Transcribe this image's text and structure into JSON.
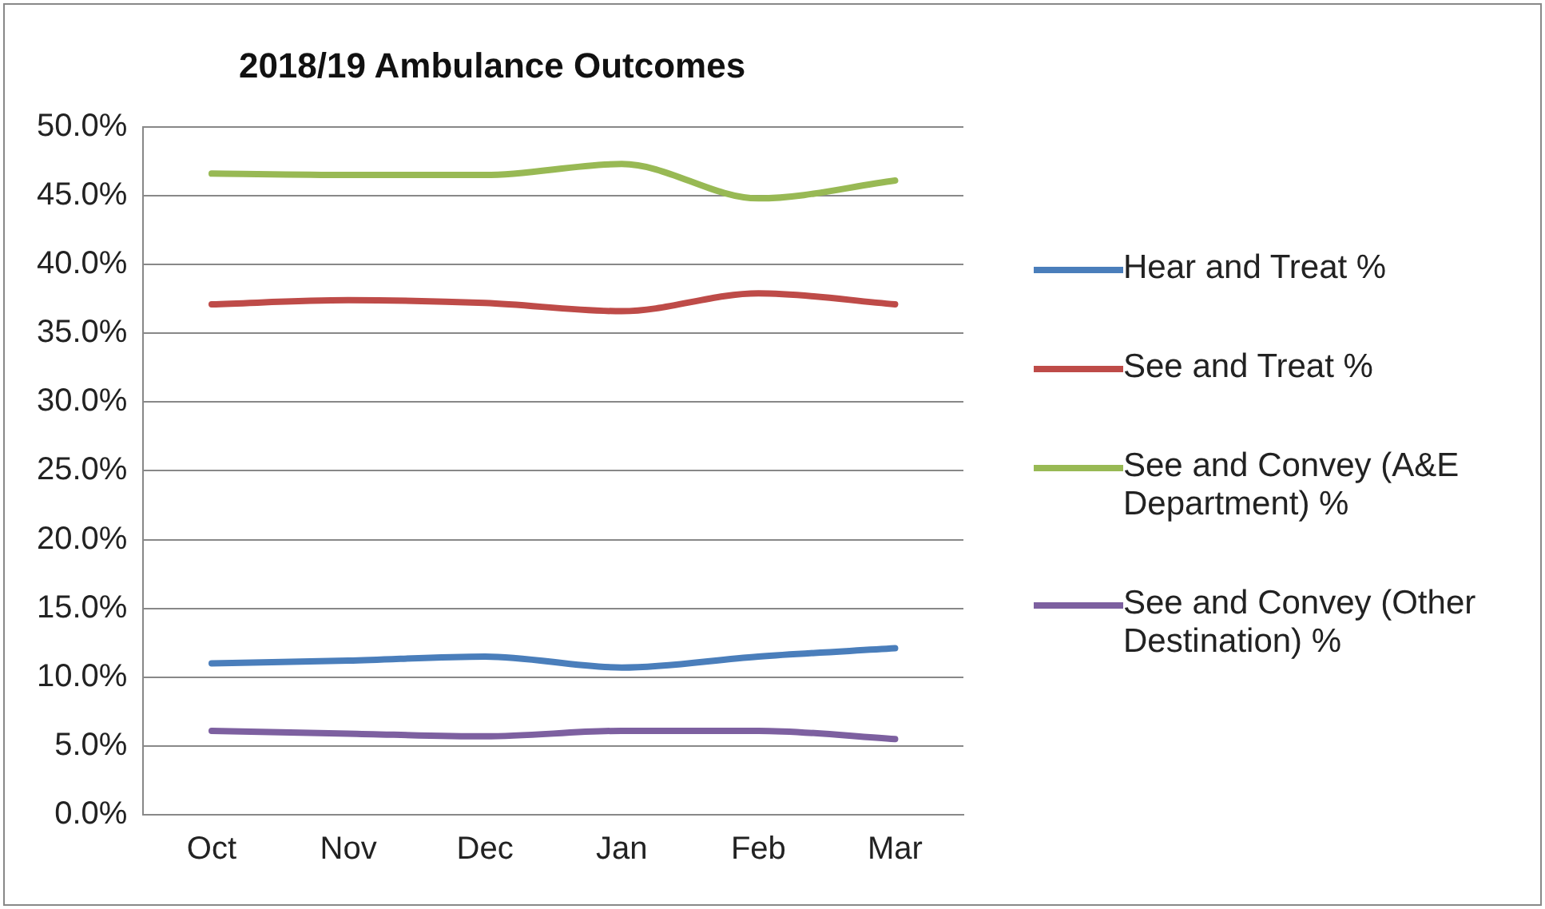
{
  "chart_data": {
    "type": "line",
    "title": "2018/19 Ambulance Outcomes",
    "categories": [
      "Oct",
      "Nov",
      "Dec",
      "Jan",
      "Feb",
      "Mar"
    ],
    "series": [
      {
        "name": "Hear and Treat %",
        "color": "#4a7ebb",
        "values": [
          11.0,
          11.2,
          11.5,
          10.7,
          11.5,
          12.1
        ]
      },
      {
        "name": "See and Treat %",
        "color": "#be4b48",
        "values": [
          37.1,
          37.4,
          37.2,
          36.6,
          37.9,
          37.1
        ]
      },
      {
        "name": "See and Convey (A&E Department) %",
        "color": "#98b954",
        "values": [
          46.6,
          46.5,
          46.5,
          47.3,
          44.8,
          46.1
        ]
      },
      {
        "name": "See and Convey (Other Destination) %",
        "color": "#7d60a0",
        "values": [
          6.1,
          5.9,
          5.7,
          6.1,
          6.1,
          5.5
        ]
      }
    ],
    "ylim": [
      0,
      50
    ],
    "yticks": [
      {
        "value": 0,
        "label": "0.0%"
      },
      {
        "value": 5,
        "label": "5.0%"
      },
      {
        "value": 10,
        "label": "10.0%"
      },
      {
        "value": 15,
        "label": "15.0%"
      },
      {
        "value": 20,
        "label": "20.0%"
      },
      {
        "value": 25,
        "label": "25.0%"
      },
      {
        "value": 30,
        "label": "30.0%"
      },
      {
        "value": 35,
        "label": "35.0%"
      },
      {
        "value": 40,
        "label": "40.0%"
      },
      {
        "value": 45,
        "label": "45.0%"
      },
      {
        "value": 50,
        "label": "50.0%"
      }
    ],
    "grid": "y",
    "legend": "right",
    "marker": "none",
    "line_style": "solid"
  }
}
